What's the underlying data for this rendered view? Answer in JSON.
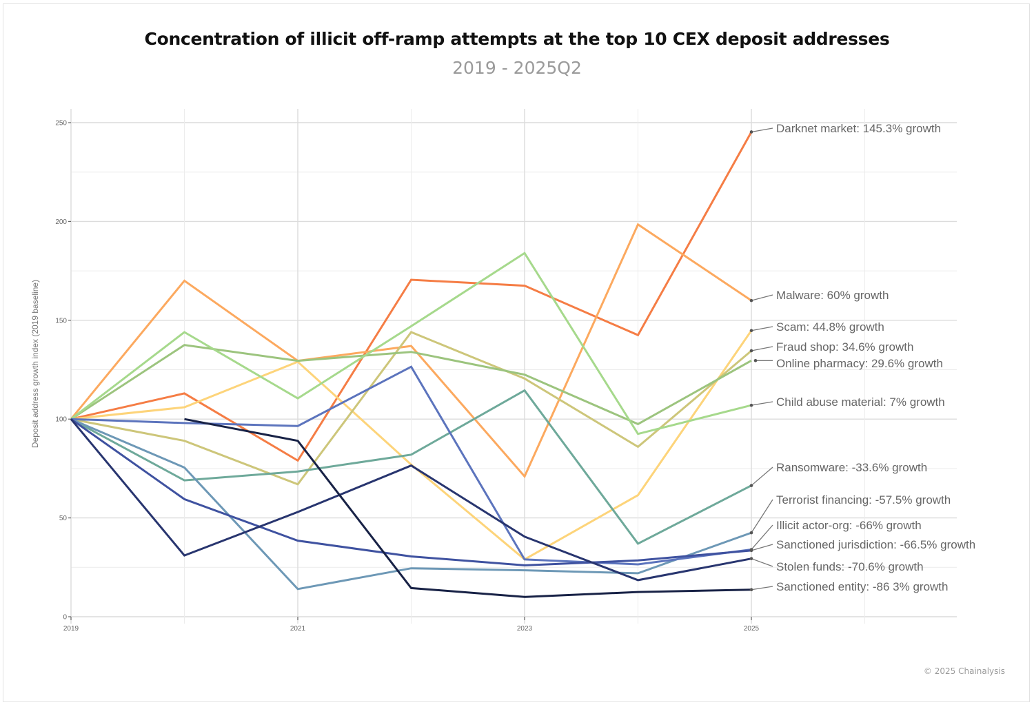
{
  "chart_data": {
    "type": "line",
    "title": "Concentration of illicit off-ramp attempts at the top 10 CEX deposit addresses",
    "subtitle": "2019 - 2025Q2",
    "xlabel": "",
    "ylabel": "Deposit address growth index (2019 baseline)",
    "x": [
      2019,
      2020,
      2021,
      2022,
      2023,
      2024,
      2025
    ],
    "xlim": [
      2019,
      2026.8
    ],
    "ylim": [
      0,
      255
    ],
    "x_ticks": [
      2019,
      2021,
      2023,
      2025
    ],
    "y_ticks": [
      0,
      50,
      100,
      150,
      200,
      250
    ],
    "grid": true,
    "legend": "direct-labels-right",
    "series": [
      {
        "name": "Darknet market",
        "label": "Darknet market: 145.3% growth",
        "color": "#f57d45",
        "values": [
          100,
          113,
          79,
          170.5,
          167.5,
          142.5,
          245.3
        ]
      },
      {
        "name": "Malware",
        "label": "Malware: 60% growth",
        "color": "#fca95f",
        "values": [
          100,
          170,
          129.5,
          137,
          71,
          198.5,
          160
        ]
      },
      {
        "name": "Scam",
        "label": "Scam: 44.8% growth",
        "color": "#fdd47a",
        "values": [
          100,
          106,
          129,
          77,
          29,
          61.5,
          144.8
        ]
      },
      {
        "name": "Fraud shop",
        "label": "Fraud shop: 34.6% growth",
        "color": "#cdc67a",
        "values": [
          100,
          89,
          67,
          144,
          120.5,
          86,
          134.6
        ]
      },
      {
        "name": "Online pharmacy",
        "label": "Online pharmacy: 29.6% growth",
        "color": "#9cc47e",
        "values": [
          100,
          137.5,
          129.5,
          134,
          122.5,
          97.5,
          129.6
        ]
      },
      {
        "name": "Child abuse material",
        "label": "Child abuse material: 7% growth",
        "color": "#a6d98c",
        "values": [
          100,
          144,
          110.5,
          147,
          184,
          92.5,
          107
        ]
      },
      {
        "name": "Ransomware",
        "label": "Ransomware: -33.6% growth",
        "color": "#6ea99a",
        "values": [
          100,
          69,
          73.5,
          82,
          114.5,
          37,
          66.4
        ]
      },
      {
        "name": "Terrorist financing",
        "label": "Terrorist financing: -57.5% growth",
        "color": "#6d98b6",
        "values": [
          100,
          75.5,
          14,
          24.5,
          23.5,
          22,
          42.5
        ]
      },
      {
        "name": "Illicit actor-org",
        "label": "Illicit actor-org: -66% growth",
        "color": "#5c74bd",
        "values": [
          100,
          98,
          96.5,
          126.5,
          29,
          26.5,
          34
        ]
      },
      {
        "name": "Sanctioned jurisdiction",
        "label": "Sanctioned jurisdiction: -66.5% growth",
        "color": "#3f52a0",
        "values": [
          100,
          59.5,
          38.5,
          30.5,
          26,
          28.5,
          33.5
        ]
      },
      {
        "name": "Stolen funds",
        "label": "Stolen funds: -70.6% growth",
        "color": "#28356f",
        "values": [
          100,
          31,
          53,
          76.5,
          40.5,
          18.5,
          29.4
        ]
      },
      {
        "name": "Sanctioned entity",
        "label": "Sanctioned entity: -86 3% growth",
        "color": "#182246",
        "values": [
          null,
          100,
          89,
          14.5,
          10,
          12.5,
          13.7
        ]
      }
    ]
  },
  "footer": "© 2025 Chainalysis"
}
